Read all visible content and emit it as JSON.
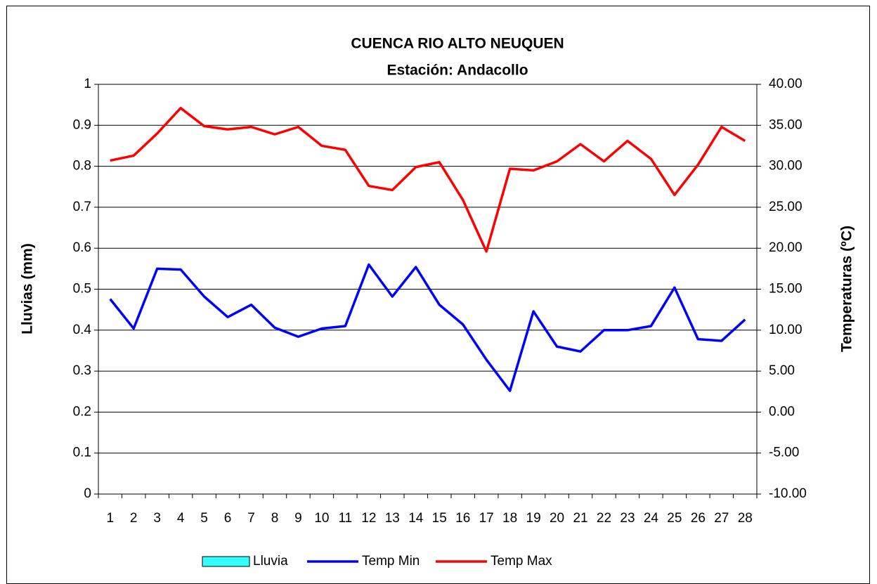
{
  "chart_data": {
    "type": "combo",
    "title": "CUENCA RIO ALTO NEUQUEN",
    "subtitle": "Estación: Andacollo",
    "y_label": "Lluvias (mm)",
    "y2_label": "Temperaturas (ºC)",
    "categories": [
      "1",
      "2",
      "3",
      "4",
      "5",
      "6",
      "7",
      "8",
      "9",
      "10",
      "11",
      "12",
      "13",
      "14",
      "15",
      "16",
      "17",
      "18",
      "19",
      "20",
      "21",
      "22",
      "23",
      "24",
      "25",
      "26",
      "27",
      "28"
    ],
    "series": [
      {
        "name": "Lluvia",
        "type": "bar",
        "axis": "y",
        "color": "#33ffff",
        "values": [
          0,
          0,
          0,
          0,
          0,
          0,
          0,
          0,
          0,
          0,
          0,
          0,
          0,
          0,
          0,
          0,
          0,
          0,
          0,
          0,
          0,
          0,
          0,
          0,
          0,
          0,
          0,
          0
        ]
      },
      {
        "name": "Temp Min",
        "type": "line",
        "axis": "y2",
        "color": "#0000ff",
        "values": [
          13.8,
          10.2,
          17.5,
          17.4,
          14.1,
          11.6,
          13.1,
          10.3,
          9.2,
          10.2,
          10.5,
          18.0,
          14.1,
          17.7,
          13.1,
          10.7,
          6.4,
          2.6,
          12.3,
          8.0,
          7.4,
          10.0,
          10.0,
          10.5,
          15.2,
          8.9,
          8.7,
          11.3
        ]
      },
      {
        "name": "Temp Max",
        "type": "line",
        "axis": "y2",
        "color": "#ff0000",
        "values": [
          30.7,
          31.3,
          34.0,
          37.1,
          34.9,
          34.5,
          34.8,
          33.9,
          34.8,
          32.5,
          32.0,
          27.6,
          27.1,
          29.9,
          30.5,
          25.9,
          19.6,
          29.7,
          29.5,
          30.6,
          32.7,
          30.6,
          33.1,
          30.9,
          26.5,
          30.2,
          34.8,
          33.1
        ]
      }
    ],
    "ylim": [
      0,
      1
    ],
    "yticks": [
      0,
      0.1,
      0.2,
      0.3,
      0.4,
      0.5,
      0.6,
      0.7,
      0.8,
      0.9,
      1
    ],
    "y2lim": [
      -10,
      40
    ],
    "y2ticks": [
      {
        "value": -10,
        "label": "-10.00"
      },
      {
        "value": -5,
        "label": "-5.00"
      },
      {
        "value": 0,
        "label": "0.00"
      },
      {
        "value": 5,
        "label": "5.00"
      },
      {
        "value": 10,
        "label": "10.00"
      },
      {
        "value": 15,
        "label": "15.00"
      },
      {
        "value": 20,
        "label": "20.00"
      },
      {
        "value": 25,
        "label": "25.00"
      },
      {
        "value": 30,
        "label": "30.00"
      },
      {
        "value": 35,
        "label": "35.00"
      },
      {
        "value": 40,
        "label": "40.00"
      }
    ],
    "grid": true,
    "legend": "bottom"
  }
}
